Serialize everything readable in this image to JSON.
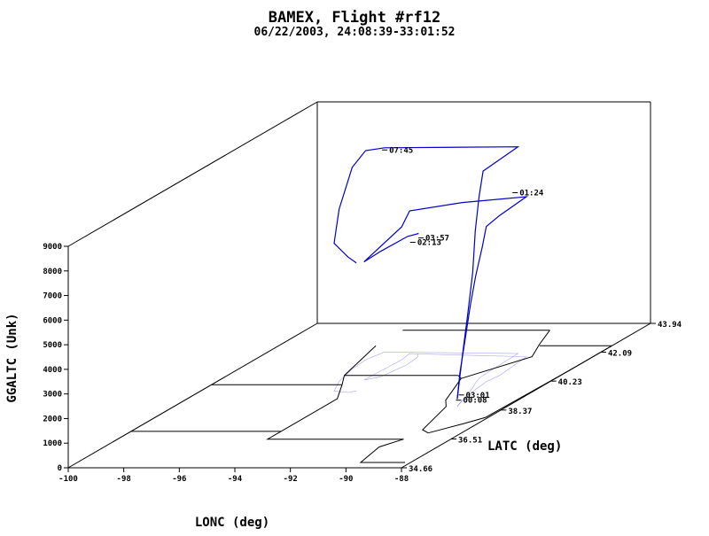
{
  "chart_data": {
    "type": "line",
    "title": "BAMEX, Flight #rf12",
    "subtitle": "06/22/2003, 24:08:39-33:01:52",
    "xlabel": "LONC (deg)",
    "ylabel": "LATC (deg)",
    "zlabel": "GGALTC (Unk)",
    "x_ticks": [
      "-100",
      "-98",
      "-96",
      "-94",
      "-92",
      "-90",
      "-88"
    ],
    "y_ticks": [
      "34.66",
      "36.51",
      "38.37",
      "40.23",
      "42.09",
      "43.94"
    ],
    "z_ticks": [
      "0",
      "1000",
      "2000",
      "3000",
      "4000",
      "5000",
      "6000",
      "7000",
      "8000",
      "9000"
    ],
    "xlim": [
      -100,
      -88
    ],
    "ylim": [
      34.66,
      43.94
    ],
    "zlim": [
      0,
      9000
    ],
    "series": [
      {
        "color": "#0000cc",
        "points": [
          {
            "lon": -89.8,
            "lat": 38.6,
            "alt": 300
          },
          {
            "lon": -89.9,
            "lat": 38.8,
            "alt": 1200
          },
          {
            "lon": -90.0,
            "lat": 39.1,
            "alt": 2400
          },
          {
            "lon": -90.1,
            "lat": 39.4,
            "alt": 3600
          },
          {
            "lon": -90.2,
            "lat": 39.7,
            "alt": 4600
          },
          {
            "lon": -90.25,
            "lat": 40.0,
            "alt": 5600
          },
          {
            "lon": -90.3,
            "lat": 40.2,
            "alt": 6300
          },
          {
            "lon": -90.2,
            "lat": 40.6,
            "alt": 6500
          },
          {
            "lon": -90.4,
            "lat": 41.8,
            "alt": 6500
          },
          {
            "lon": -92.8,
            "lat": 41.9,
            "alt": 6200
          },
          {
            "lon": -94.8,
            "lat": 42.0,
            "alt": 5800
          },
          {
            "lon": -94.7,
            "lat": 41.6,
            "alt": 5400
          },
          {
            "lon": -94.8,
            "lat": 40.3,
            "alt": 4800
          },
          {
            "lon": -94.4,
            "lat": 40.5,
            "alt": 5100
          },
          {
            "lon": -94.2,
            "lat": 41.3,
            "alt": 5200
          },
          {
            "lon": -94.3,
            "lat": 41.8,
            "alt": 5000
          },
          {
            "lon": -94.5,
            "lat": 42.0,
            "alt": 4900
          }
        ]
      },
      {
        "color": "#0000cc",
        "points": [
          {
            "lon": -89.8,
            "lat": 38.6,
            "alt": 300
          },
          {
            "lon": -90.0,
            "lat": 39.0,
            "alt": 1800
          },
          {
            "lon": -90.2,
            "lat": 39.4,
            "alt": 3200
          },
          {
            "lon": -90.4,
            "lat": 39.8,
            "alt": 4700
          },
          {
            "lon": -90.6,
            "lat": 40.1,
            "alt": 6200
          },
          {
            "lon": -90.75,
            "lat": 40.4,
            "alt": 7400
          },
          {
            "lon": -90.8,
            "lat": 40.6,
            "alt": 8300
          },
          {
            "lon": -90.9,
            "lat": 42.0,
            "alt": 8400
          },
          {
            "lon": -95.8,
            "lat": 42.1,
            "alt": 8300
          },
          {
            "lon": -96.0,
            "lat": 41.6,
            "alt": 8500
          },
          {
            "lon": -95.9,
            "lat": 41.0,
            "alt": 8200
          },
          {
            "lon": -95.6,
            "lat": 40.2,
            "alt": 7000
          },
          {
            "lon": -95.2,
            "lat": 39.6,
            "alt": 6000
          },
          {
            "lon": -94.6,
            "lat": 39.5,
            "alt": 5500
          },
          {
            "lon": -94.4,
            "lat": 39.6,
            "alt": 5200
          }
        ]
      }
    ],
    "time_labels": [
      {
        "text": "07:45",
        "lon": -95.6,
        "lat": 41.8,
        "alt": 8400
      },
      {
        "text": "01:24",
        "lon": -91.0,
        "lat": 41.9,
        "alt": 6600
      },
      {
        "text": "03:57",
        "lon": -94.1,
        "lat": 41.6,
        "alt": 4950
      },
      {
        "text": "02:13",
        "lon": -94.2,
        "lat": 41.4,
        "alt": 4900
      },
      {
        "text": "03:01",
        "lon": -89.7,
        "lat": 38.55,
        "alt": 500
      },
      {
        "text": "00:08",
        "lon": -89.7,
        "lat": 38.45,
        "alt": 350
      }
    ],
    "grid": false,
    "legend": "none"
  }
}
